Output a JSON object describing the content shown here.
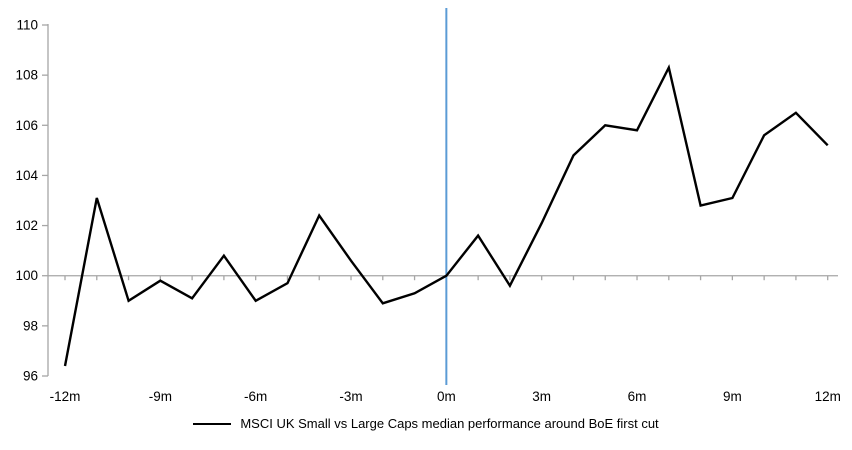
{
  "chart_data": {
    "type": "line",
    "title": "",
    "x": [
      -12,
      -11,
      -10,
      -9,
      -8,
      -7,
      -6,
      -5,
      -4,
      -3,
      -2,
      -1,
      0,
      1,
      2,
      3,
      4,
      5,
      6,
      7,
      8,
      9,
      10,
      11,
      12
    ],
    "series": [
      {
        "name": "MSCI UK Small vs Large Caps median performance around BoE first cut",
        "values": [
          96.4,
          103.1,
          99.0,
          99.8,
          99.1,
          100.8,
          99.0,
          99.7,
          102.4,
          100.6,
          98.9,
          99.3,
          100.0,
          101.6,
          99.6,
          102.1,
          104.8,
          106.0,
          105.8,
          108.3,
          102.8,
          103.1,
          105.6,
          106.5,
          105.2
        ]
      }
    ],
    "x_tick_positions": [
      -12,
      -9,
      -6,
      -3,
      0,
      3,
      6,
      9,
      12
    ],
    "x_tick_labels": [
      "-12m",
      "-9m",
      "-6m",
      "-3m",
      "0m",
      "3m",
      "6m",
      "9m",
      "12m"
    ],
    "y_ticks": [
      96,
      98,
      100,
      102,
      104,
      106,
      108,
      110
    ],
    "ylim": [
      96,
      110
    ],
    "xlim": [
      -12,
      12
    ],
    "baseline_value": 100,
    "event_line_x": 0,
    "grid": "baseline-only",
    "legend_position": "bottom-center",
    "xlabel": "",
    "ylabel": ""
  },
  "legend": {
    "label": "MSCI UK Small vs Large Caps median performance around BoE first cut"
  },
  "colors": {
    "series_line": "#000000",
    "event_line": "#5B9BD5",
    "axis_gray": "#A6A6A6",
    "tick_text": "#000000",
    "background": "#FFFFFF"
  }
}
